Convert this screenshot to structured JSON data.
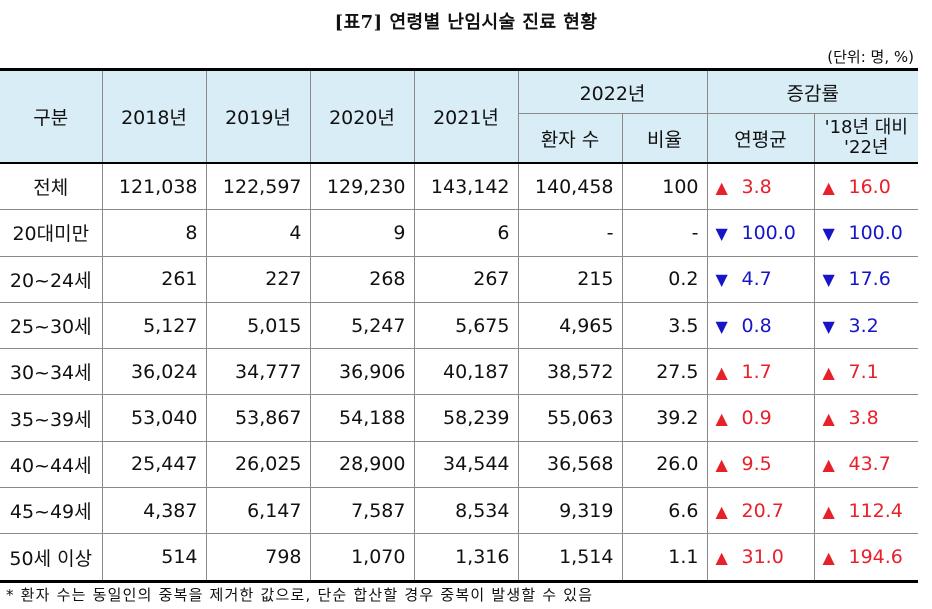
{
  "title": "[표7] 연령별 난임시술 진료 현황",
  "unit": "(단위: 명, %)",
  "header": {
    "category": "구분",
    "years": [
      "2018년",
      "2019년",
      "2020년",
      "2021년"
    ],
    "year_2022": "2022년",
    "change_rate": "증감률",
    "patients": "환자 수",
    "ratio": "비율",
    "annual_avg": "연평균",
    "vs_18_line1": "'18년 대비",
    "vs_18_line2": "'22년"
  },
  "rows": [
    {
      "label": "전체",
      "y2018": "121,038",
      "y2019": "122,597",
      "y2020": "129,230",
      "y2021": "143,142",
      "p2022": "140,458",
      "ratio": "100",
      "avg": "3.8",
      "avg_dir": "up",
      "vs": "16.0",
      "vs_dir": "up"
    },
    {
      "label": "20대미만",
      "y2018": "8",
      "y2019": "4",
      "y2020": "9",
      "y2021": "6",
      "p2022": "-",
      "ratio": "-",
      "avg": "100.0",
      "avg_dir": "down",
      "vs": "100.0",
      "vs_dir": "down"
    },
    {
      "label": "20~24세",
      "y2018": "261",
      "y2019": "227",
      "y2020": "268",
      "y2021": "267",
      "p2022": "215",
      "ratio": "0.2",
      "avg": "4.7",
      "avg_dir": "down",
      "vs": "17.6",
      "vs_dir": "down"
    },
    {
      "label": "25~30세",
      "y2018": "5,127",
      "y2019": "5,015",
      "y2020": "5,247",
      "y2021": "5,675",
      "p2022": "4,965",
      "ratio": "3.5",
      "avg": "0.8",
      "avg_dir": "down",
      "vs": "3.2",
      "vs_dir": "down"
    },
    {
      "label": "30~34세",
      "y2018": "36,024",
      "y2019": "34,777",
      "y2020": "36,906",
      "y2021": "40,187",
      "p2022": "38,572",
      "ratio": "27.5",
      "avg": "1.7",
      "avg_dir": "up",
      "vs": "7.1",
      "vs_dir": "up"
    },
    {
      "label": "35~39세",
      "y2018": "53,040",
      "y2019": "53,867",
      "y2020": "54,188",
      "y2021": "58,239",
      "p2022": "55,063",
      "ratio": "39.2",
      "avg": "0.9",
      "avg_dir": "up",
      "vs": "3.8",
      "vs_dir": "up"
    },
    {
      "label": "40~44세",
      "y2018": "25,447",
      "y2019": "26,025",
      "y2020": "28,900",
      "y2021": "34,544",
      "p2022": "36,568",
      "ratio": "26.0",
      "avg": "9.5",
      "avg_dir": "up",
      "vs": "43.7",
      "vs_dir": "up"
    },
    {
      "label": "45~49세",
      "y2018": "4,387",
      "y2019": "6,147",
      "y2020": "7,587",
      "y2021": "8,534",
      "p2022": "9,319",
      "ratio": "6.6",
      "avg": "20.7",
      "avg_dir": "up",
      "vs": "112.4",
      "vs_dir": "up"
    },
    {
      "label": "50세 이상",
      "y2018": "514",
      "y2019": "798",
      "y2020": "1,070",
      "y2021": "1,316",
      "p2022": "1,514",
      "ratio": "1.1",
      "avg": "31.0",
      "avg_dir": "up",
      "vs": "194.6",
      "vs_dir": "up"
    }
  ],
  "symbols": {
    "up": "▲",
    "down": "▼"
  },
  "colors": {
    "up": "#e8202a",
    "down": "#1616c8",
    "header_bg": "#d9edf7"
  },
  "footnote": "* 환자 수는 동일인의 중복을 제거한 값으로, 단순 합산할 경우 중복이 발생할 수 있음"
}
